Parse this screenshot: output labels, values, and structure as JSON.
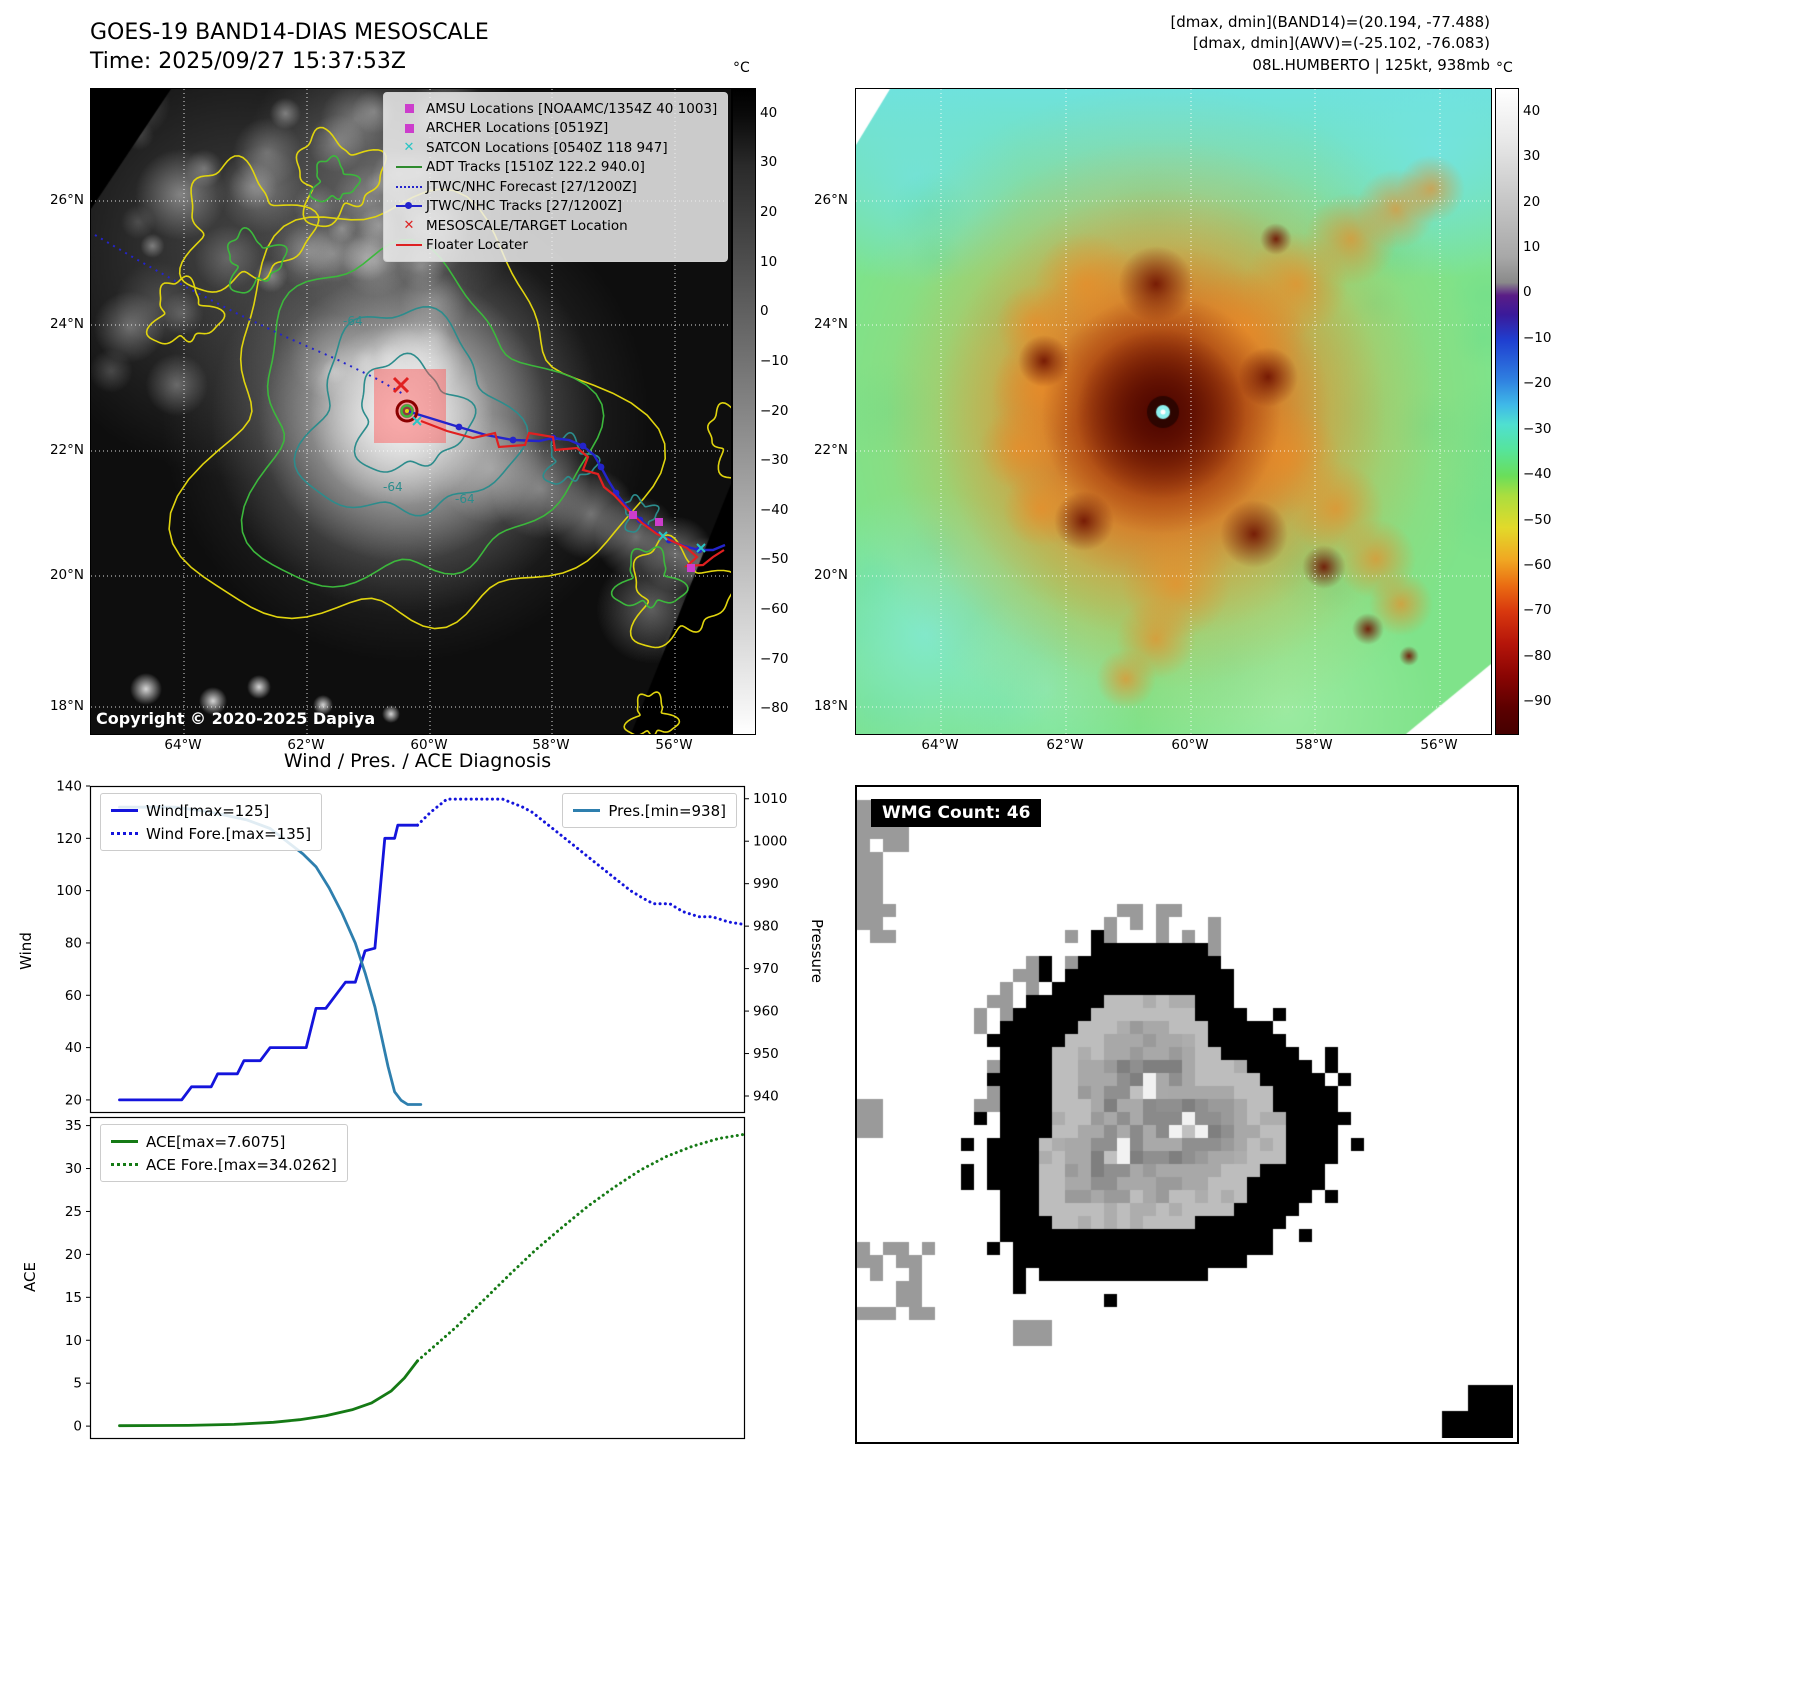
{
  "header": {
    "title": "GOES-19 BAND14-DIAS MESOSCALE",
    "time": "Time: 2025/09/27 15:37:53Z",
    "dmax_band14": "[dmax, dmin](BAND14)=(20.194, -77.488)",
    "dmax_awv": "[dmax, dmin](AWV)=(-25.102, -76.083)",
    "storm_info": "08L.HUMBERTO | 125kt, 938mb"
  },
  "geo": {
    "lat_ticks": [
      "26°N",
      "24°N",
      "22°N",
      "20°N",
      "18°N"
    ],
    "lon_ticks": [
      "64°W",
      "62°W",
      "60°W",
      "58°W",
      "56°W"
    ]
  },
  "left_map": {
    "legend": [
      {
        "label": "AMSU Locations [NOAAMC/1354Z 40 1003]",
        "marker": "square",
        "color": "#cc3dcc"
      },
      {
        "label": "ARCHER Locations [0519Z]",
        "marker": "square",
        "color": "#cc3dcc"
      },
      {
        "label": "SATCON Locations [0540Z 118 947]",
        "marker": "x",
        "color": "#29c5c5"
      },
      {
        "label": "ADT Tracks [1510Z 122.2 940.0]",
        "marker": "line",
        "color": "#2e8b2e"
      },
      {
        "label": "JTWC/NHC Forecast [27/1200Z]",
        "marker": "dotted",
        "color": "#2424cc"
      },
      {
        "label": "JTWC/NHC Tracks [27/1200Z]",
        "marker": "line-dot",
        "color": "#2424cc"
      },
      {
        "label": "MESOSCALE/TARGET Location",
        "marker": "x",
        "color": "#dd2222"
      },
      {
        "label": "Floater Locater",
        "marker": "line",
        "color": "#dd2222"
      }
    ],
    "copyright": "Copyright © 2020-2025 Dapiya",
    "contour_label": "-64",
    "colorbar": {
      "unit": "°C",
      "ticks": [
        "40",
        "30",
        "20",
        "10",
        "0",
        "−10",
        "−20",
        "−30",
        "−40",
        "−50",
        "−60",
        "−70",
        "−80"
      ]
    }
  },
  "right_map": {
    "colorbar": {
      "unit": "°C",
      "ticks": [
        "40",
        "30",
        "20",
        "10",
        "0",
        "−10",
        "−20",
        "−30",
        "−40",
        "−50",
        "−60",
        "−70",
        "−80",
        "−90"
      ]
    }
  },
  "charts_title": "Wind / Pres. / ACE Diagnosis",
  "wmg": {
    "label": "WMG Count: 46"
  },
  "chart_data": [
    {
      "type": "line",
      "title": "Wind / Pres. / ACE Diagnosis",
      "ylabel": "Wind",
      "y2label": "Pressure",
      "ylim": [
        15,
        140
      ],
      "y2lim": [
        936,
        1013
      ],
      "yticks": [
        20,
        40,
        60,
        80,
        100,
        120,
        140
      ],
      "y2ticks": [
        940,
        950,
        960,
        970,
        980,
        990,
        1000,
        1010
      ],
      "x_range": [
        0,
        1
      ],
      "grid": false,
      "series": [
        {
          "name": "Wind[max=125]",
          "color": "#1414dc",
          "style": "solid",
          "axis": "y1",
          "legend": "left",
          "points": [
            [
              0.045,
              20
            ],
            [
              0.14,
              20
            ],
            [
              0.155,
              25
            ],
            [
              0.185,
              25
            ],
            [
              0.195,
              30
            ],
            [
              0.225,
              30
            ],
            [
              0.235,
              35
            ],
            [
              0.26,
              35
            ],
            [
              0.275,
              40
            ],
            [
              0.33,
              40
            ],
            [
              0.345,
              55
            ],
            [
              0.36,
              55
            ],
            [
              0.375,
              60
            ],
            [
              0.39,
              65
            ],
            [
              0.405,
              65
            ],
            [
              0.42,
              77
            ],
            [
              0.435,
              78
            ],
            [
              0.45,
              120
            ],
            [
              0.465,
              120
            ],
            [
              0.47,
              125
            ],
            [
              0.5,
              125
            ]
          ]
        },
        {
          "name": "Wind Fore.[max=135]",
          "color": "#1414dc",
          "style": "dotted",
          "axis": "y1",
          "legend": "left",
          "points": [
            [
              0.5,
              125
            ],
            [
              0.52,
              130
            ],
            [
              0.545,
              135
            ],
            [
              0.63,
              135
            ],
            [
              0.66,
              132
            ],
            [
              0.675,
              130
            ],
            [
              0.7,
              125
            ],
            [
              0.725,
              120
            ],
            [
              0.75,
              115
            ],
            [
              0.775,
              110
            ],
            [
              0.8,
              105
            ],
            [
              0.825,
              100
            ],
            [
              0.845,
              97
            ],
            [
              0.86,
              95
            ],
            [
              0.885,
              95
            ],
            [
              0.905,
              92
            ],
            [
              0.93,
              90
            ],
            [
              0.95,
              90
            ],
            [
              0.975,
              88
            ],
            [
              1.0,
              87
            ]
          ]
        },
        {
          "name": "Pres.[min=938]",
          "color": "#2e7fae",
          "style": "solid",
          "axis": "y2",
          "legend": "right",
          "points": [
            [
              0.045,
              1008
            ],
            [
              0.13,
              1008
            ],
            [
              0.18,
              1007
            ],
            [
              0.24,
              1005
            ],
            [
              0.275,
              1003
            ],
            [
              0.3,
              1000
            ],
            [
              0.325,
              997
            ],
            [
              0.345,
              994
            ],
            [
              0.365,
              989
            ],
            [
              0.385,
              983
            ],
            [
              0.405,
              976
            ],
            [
              0.42,
              969
            ],
            [
              0.435,
              961
            ],
            [
              0.445,
              954
            ],
            [
              0.455,
              947
            ],
            [
              0.465,
              941
            ],
            [
              0.475,
              939
            ],
            [
              0.485,
              938
            ],
            [
              0.505,
              938
            ]
          ]
        }
      ]
    },
    {
      "type": "line",
      "ylabel": "ACE",
      "ylim": [
        -1.5,
        36
      ],
      "yticks": [
        0,
        5,
        10,
        15,
        20,
        25,
        30,
        35
      ],
      "x_range": [
        0,
        1
      ],
      "grid": false,
      "series": [
        {
          "name": "ACE[max=7.6075]",
          "color": "#157a15",
          "style": "solid",
          "axis": "y1",
          "legend": "left",
          "points": [
            [
              0.045,
              0.05
            ],
            [
              0.15,
              0.08
            ],
            [
              0.22,
              0.2
            ],
            [
              0.28,
              0.45
            ],
            [
              0.32,
              0.75
            ],
            [
              0.36,
              1.2
            ],
            [
              0.4,
              1.9
            ],
            [
              0.43,
              2.7
            ],
            [
              0.46,
              4.1
            ],
            [
              0.48,
              5.6
            ],
            [
              0.5,
              7.6
            ]
          ]
        },
        {
          "name": "ACE Fore.[max=34.0262]",
          "color": "#157a15",
          "style": "dotted",
          "axis": "y1",
          "legend": "left",
          "points": [
            [
              0.5,
              7.6
            ],
            [
              0.53,
              9.6
            ],
            [
              0.56,
              11.6
            ],
            [
              0.6,
              14.6
            ],
            [
              0.64,
              17.6
            ],
            [
              0.68,
              20.5
            ],
            [
              0.72,
              23.1
            ],
            [
              0.76,
              25.6
            ],
            [
              0.8,
              27.8
            ],
            [
              0.84,
              29.8
            ],
            [
              0.88,
              31.4
            ],
            [
              0.92,
              32.6
            ],
            [
              0.96,
              33.5
            ],
            [
              1.0,
              34.0
            ]
          ]
        }
      ]
    }
  ]
}
